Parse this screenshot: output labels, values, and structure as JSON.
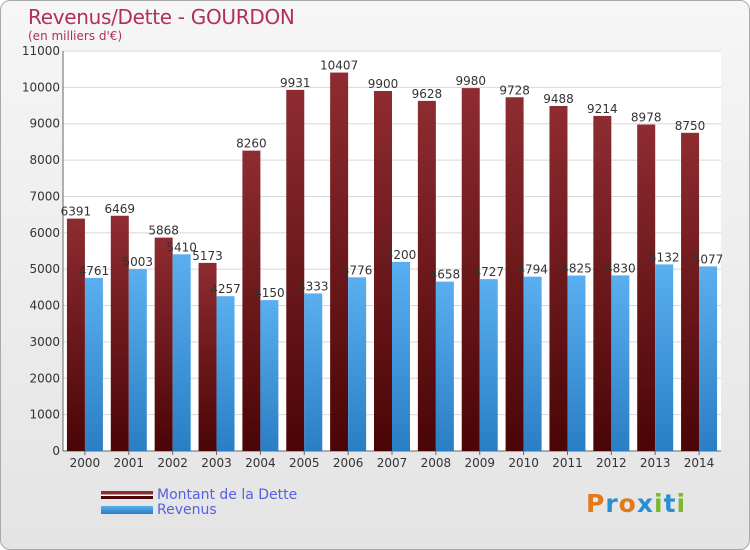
{
  "title": "Revenus/Dette - GOURDON",
  "subtitle": "(en milliers d'€)",
  "colors": {
    "dette": "#7a1a1f",
    "revenus": "#3a9be0",
    "title": "#b0305a",
    "legend_text": "#5561e0"
  },
  "legend": [
    {
      "label": "Montant de la Dette",
      "color": "#7a1a1f"
    },
    {
      "label": "Revenus",
      "color": "#3a9be0"
    }
  ],
  "logo": {
    "letters": [
      "P",
      "r",
      "o",
      "x",
      "i",
      "t",
      "i"
    ],
    "colors": [
      "#e07a1a",
      "#2a8fd0",
      "#e07a1a",
      "#2a8fd0",
      "#7ab82e",
      "#2a8fd0",
      "#7ab82e"
    ]
  },
  "chart_data": {
    "type": "bar",
    "categories": [
      "2000",
      "2001",
      "2002",
      "2003",
      "2004",
      "2005",
      "2006",
      "2007",
      "2008",
      "2009",
      "2010",
      "2011",
      "2012",
      "2013",
      "2014"
    ],
    "series": [
      {
        "name": "Montant de la Dette",
        "values": [
          6391,
          6469,
          5868,
          5173,
          8260,
          9931,
          10407,
          9900,
          9628,
          9980,
          9728,
          9488,
          9214,
          8978,
          8750
        ]
      },
      {
        "name": "Revenus",
        "values": [
          4761,
          5003,
          5410,
          4257,
          4150,
          4333,
          4776,
          5200,
          4658,
          4727,
          4794,
          4825,
          4830,
          5132,
          5077
        ]
      }
    ],
    "ylim": [
      0,
      11000
    ],
    "yticks": [
      0,
      1000,
      2000,
      3000,
      4000,
      5000,
      6000,
      7000,
      8000,
      9000,
      10000,
      11000
    ],
    "grid": true,
    "legend_position": "bottom-left"
  }
}
